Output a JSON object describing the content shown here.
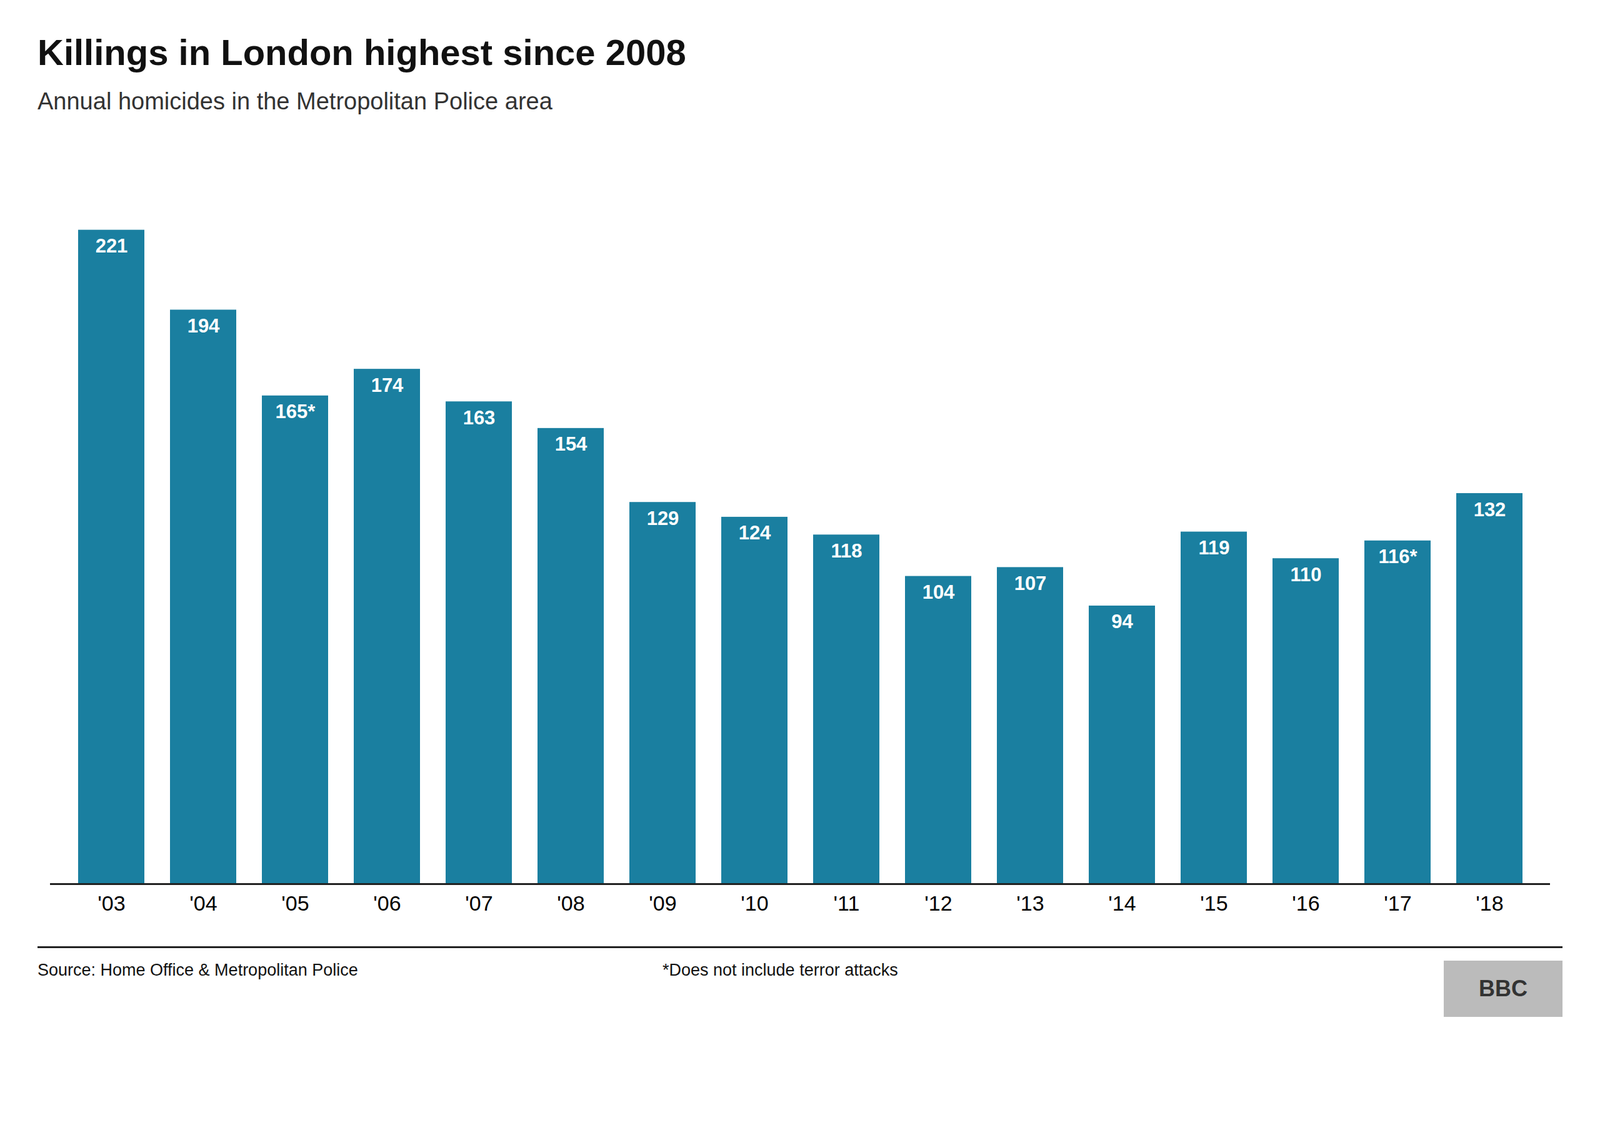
{
  "chart_data": {
    "type": "bar",
    "title": "Killings in London highest since 2008",
    "subtitle": "Annual homicides in the Metropolitan Police area",
    "categories": [
      "'03",
      "'04",
      "'05",
      "'06",
      "'07",
      "'08",
      "'09",
      "'10",
      "'11",
      "'12",
      "'13",
      "'14",
      "'15",
      "'16",
      "'17",
      "'18"
    ],
    "values": [
      221,
      194,
      165,
      174,
      163,
      154,
      129,
      124,
      118,
      104,
      107,
      94,
      119,
      110,
      116,
      132
    ],
    "value_labels": [
      "221",
      "194",
      "165*",
      "174",
      "163",
      "154",
      "129",
      "124",
      "118",
      "104",
      "107",
      "94",
      "119",
      "110",
      "116*",
      "132"
    ],
    "color": "#1a7fa0",
    "ylim": [
      0,
      245
    ],
    "data_labels": true,
    "tick_labels": "x",
    "grid": false,
    "source": "Source: Home Office & Metropolitan Police",
    "footnote": "*Does not include terror attacks",
    "logo": "BBC"
  }
}
